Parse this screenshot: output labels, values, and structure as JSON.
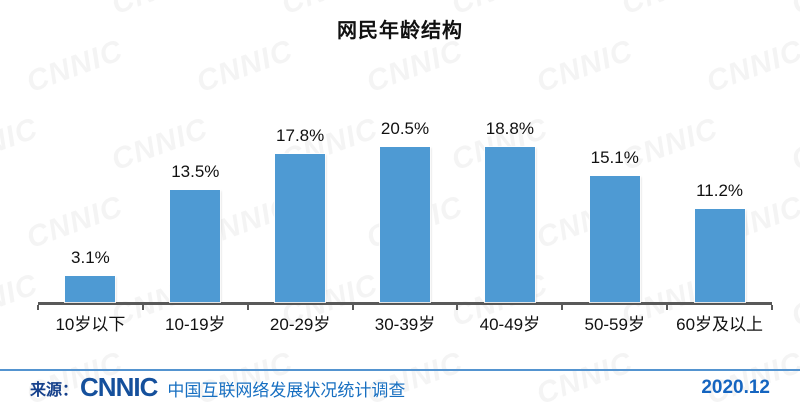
{
  "title": "网民年龄结构",
  "chart_data": {
    "type": "bar",
    "title": "网民年龄结构",
    "categories": [
      "10岁以下",
      "10-19岁",
      "20-29岁",
      "30-39岁",
      "40-49岁",
      "50-59岁",
      "60岁及以上"
    ],
    "values": [
      3.1,
      13.5,
      17.8,
      20.5,
      18.8,
      15.1,
      11.2
    ],
    "value_labels": [
      "3.1%",
      "13.5%",
      "17.8%",
      "20.5%",
      "18.8%",
      "15.1%",
      "11.2%"
    ],
    "xlabel": "",
    "ylabel": "",
    "ylim": [
      0,
      22
    ],
    "grid": false,
    "legend": "none",
    "bar_color": "#4e9ad3",
    "axis_color": "#595959"
  },
  "watermark": {
    "text": "CNNIC"
  },
  "footer": {
    "source_label": "来源：",
    "logo_text": "CNNIC",
    "source_text": "中国互联网络发展状况统计调查",
    "date": "2020.12",
    "line_color": "#5494d0"
  }
}
